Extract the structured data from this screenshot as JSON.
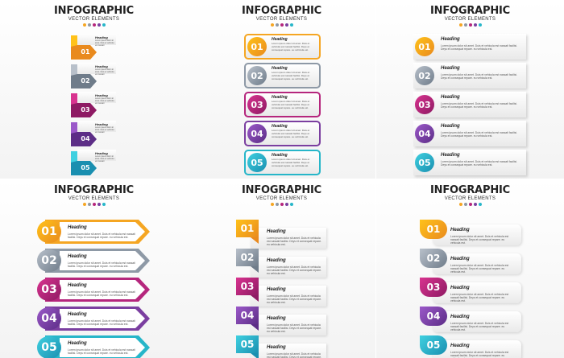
{
  "title": "INFOGRAPHIC",
  "subtitle": "VECTOR ELEMENTS",
  "heading": "Heading",
  "body_line1": "Lorem ipsum dolor sit amet. Duis et vehicula est nassati",
  "body_line2": "facilisi. Deys et consequat repare. eu vehicula est.",
  "colors": {
    "orange": "#f5a623",
    "gray": "#8e99a6",
    "magenta": "#b5267d",
    "purple": "#7b3fa0",
    "teal": "#27b6c9"
  },
  "items": [
    {
      "num": "01"
    },
    {
      "num": "02"
    },
    {
      "num": "03"
    },
    {
      "num": "04"
    },
    {
      "num": "05"
    }
  ]
}
